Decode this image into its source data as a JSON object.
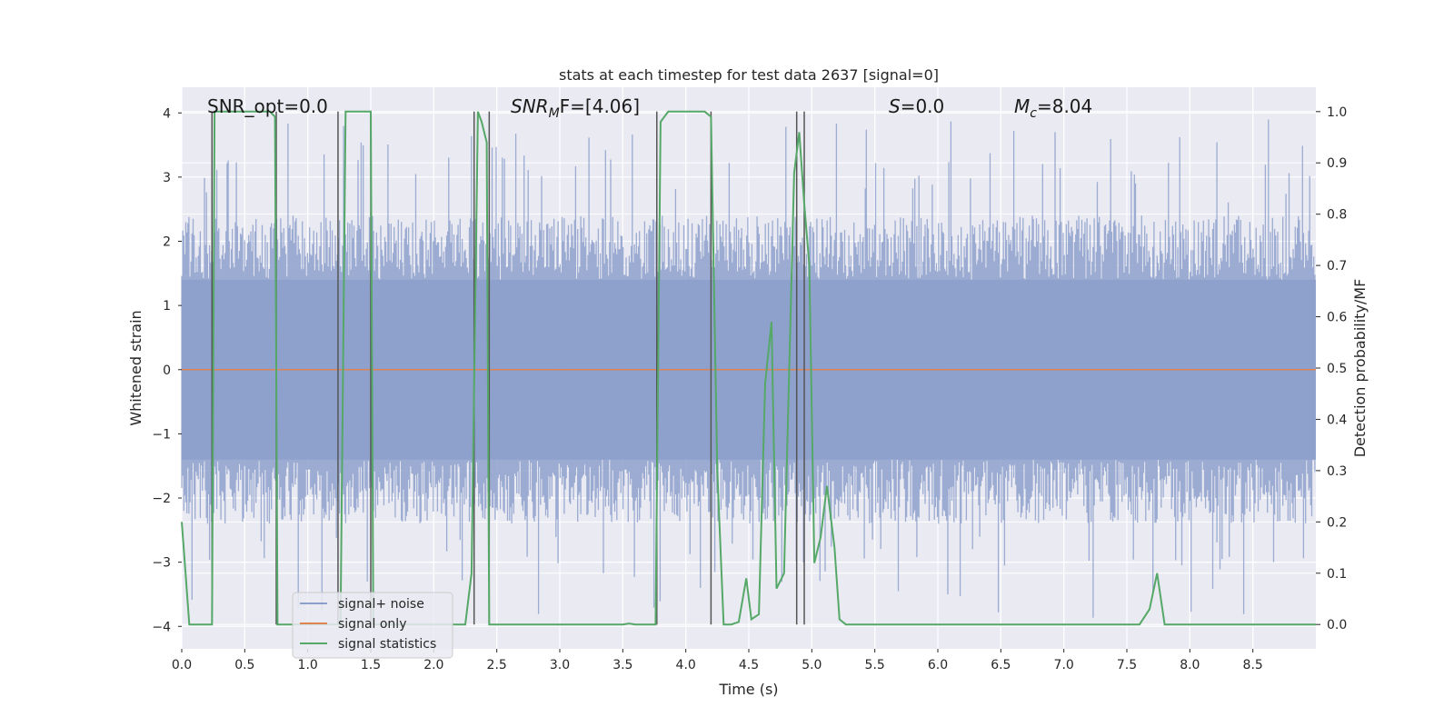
{
  "chart_data": {
    "type": "line",
    "title": "stats at each timestep for test data 2637 [signal=0]",
    "xlabel": "Time (s)",
    "ylabel": "Whitened strain",
    "y2label": "Detection probability/MF",
    "xlim": [
      0,
      9.0
    ],
    "ylim": [
      -4.35,
      4.4
    ],
    "y2lim": [
      -0.0475,
      1.0475
    ],
    "xticks": [
      0.0,
      0.5,
      1.0,
      1.5,
      2.0,
      2.5,
      3.0,
      3.5,
      4.0,
      4.5,
      5.0,
      5.5,
      6.0,
      6.5,
      7.0,
      7.5,
      8.0,
      8.5
    ],
    "xtick_labels": [
      "0.0",
      "0.5",
      "1.0",
      "1.5",
      "2.0",
      "2.5",
      "3.0",
      "3.5",
      "4.0",
      "4.5",
      "5.0",
      "5.5",
      "6.0",
      "6.5",
      "7.0",
      "7.5",
      "8.0",
      "8.5"
    ],
    "yticks": [
      4,
      3,
      2,
      1,
      0,
      -1,
      -2,
      -3,
      -4
    ],
    "ytick_labels": [
      "4",
      "3",
      "2",
      "1",
      "0",
      "−1",
      "−2",
      "−3",
      "−4"
    ],
    "y2ticks": [
      1.0,
      0.9,
      0.8,
      0.7,
      0.6,
      0.5,
      0.4,
      0.3,
      0.2,
      0.1,
      0.0
    ],
    "y2tick_labels": [
      "1.0",
      "0.9",
      "0.8",
      "0.7",
      "0.6",
      "0.5",
      "0.4",
      "0.3",
      "0.2",
      "0.1",
      "0.0"
    ],
    "annotations": {
      "snr_opt": "SNR_opt=0.0",
      "snr_mf_base": "SNR",
      "snr_mf_sub": "M",
      "snr_mf_rest": "F=[4.06]",
      "s_sym": "S",
      "s_rest": "=0.0",
      "mc_base": "M",
      "mc_sub": "c",
      "mc_rest": "=8.04"
    },
    "legend": {
      "position": "lower-left",
      "entries": [
        {
          "label": "signal+ noise",
          "color": "#8da0cb"
        },
        {
          "label": "signal only",
          "color": "#dd8452"
        },
        {
          "label": "signal statistics",
          "color": "#55a868"
        }
      ]
    },
    "noise_band": {
      "amplitude_low": 1.4,
      "amplitude_high": 2.4,
      "spike_max": 3.9,
      "sample_count": 1100
    },
    "vertical_lines_x": [
      0.24,
      0.75,
      1.24,
      1.5,
      2.32,
      2.44,
      3.77,
      4.2,
      4.88,
      4.94
    ],
    "series": [
      {
        "name": "signal statistics",
        "axis": "y2",
        "x": [
          0.0,
          0.03,
          0.06,
          0.1,
          0.15,
          0.2,
          0.24,
          0.26,
          0.3,
          0.35,
          0.4,
          0.5,
          0.6,
          0.7,
          0.74,
          0.76,
          0.8,
          0.9,
          1.0,
          1.1,
          1.2,
          1.24,
          1.26,
          1.3,
          1.35,
          1.4,
          1.5,
          1.52,
          1.6,
          1.8,
          2.0,
          2.1,
          2.2,
          2.25,
          2.3,
          2.35,
          2.38,
          2.42,
          2.44,
          2.47,
          2.5,
          2.6,
          3.0,
          3.5,
          3.55,
          3.6,
          3.76,
          3.8,
          3.86,
          3.9,
          4.0,
          4.1,
          4.15,
          4.2,
          4.25,
          4.3,
          4.36,
          4.42,
          4.48,
          4.52,
          4.58,
          4.63,
          4.68,
          4.72,
          4.78,
          4.86,
          4.9,
          4.94,
          4.98,
          5.02,
          5.07,
          5.12,
          5.18,
          5.22,
          5.27,
          5.35,
          5.5,
          6.0,
          6.5,
          7.0,
          7.5,
          7.6,
          7.68,
          7.74,
          7.8,
          7.85,
          8.0,
          8.5,
          9.0
        ],
        "values": [
          0.2,
          0.1,
          0.0,
          0.0,
          0.0,
          0.0,
          0.0,
          1.0,
          1.0,
          1.0,
          1.0,
          1.0,
          1.0,
          1.0,
          0.99,
          0.0,
          0.0,
          0.0,
          0.0,
          0.0,
          0.0,
          0.0,
          0.0,
          1.0,
          1.0,
          1.0,
          1.0,
          0.0,
          0.0,
          0.0,
          0.0,
          0.0,
          0.0,
          0.0,
          0.1,
          1.0,
          0.98,
          0.94,
          0.0,
          0.0,
          0.0,
          0.0,
          0.0,
          0.0,
          0.002,
          0.0,
          0.0,
          0.98,
          1.0,
          1.0,
          1.0,
          1.0,
          1.0,
          0.99,
          0.3,
          0.0,
          0.0,
          0.005,
          0.09,
          0.01,
          0.02,
          0.47,
          0.59,
          0.07,
          0.1,
          0.88,
          0.96,
          0.82,
          0.7,
          0.12,
          0.17,
          0.27,
          0.15,
          0.01,
          0.0,
          0.0,
          0.0,
          0.0,
          0.0,
          0.0,
          0.0,
          0.0,
          0.03,
          0.1,
          0.0,
          0.0,
          0.0,
          0.0,
          0.0
        ]
      }
    ]
  }
}
